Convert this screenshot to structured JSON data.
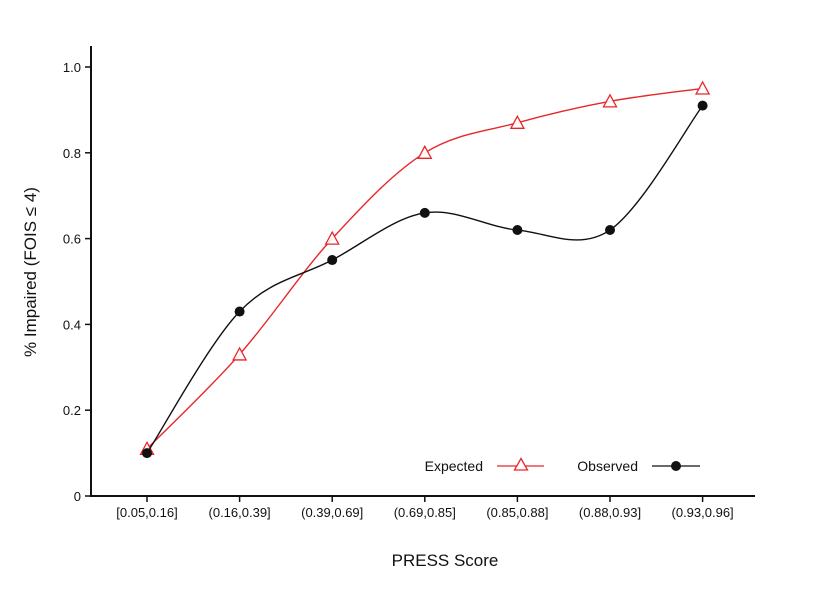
{
  "chart_data": {
    "type": "line",
    "title": "",
    "xlabel": "PRESS Score",
    "ylabel": "% Impaired (FOIS ≤ 4)",
    "ylim": [
      0,
      1.0
    ],
    "yticks": [
      "0",
      "0.2",
      "0.4",
      "0.6",
      "0.8",
      "1.0"
    ],
    "ytick_values": [
      0,
      0.2,
      0.4,
      0.6,
      0.8,
      1.0
    ],
    "categories": [
      "[0.05,0.16]",
      "(0.16,0.39]",
      "(0.39,0.69]",
      "(0.69,0.85]",
      "(0.85,0.88]",
      "(0.88,0.93]",
      "(0.93,0.96]"
    ],
    "series": [
      {
        "name": "Expected",
        "color": "#e8262a",
        "marker": "open-triangle",
        "values": [
          0.11,
          0.33,
          0.6,
          0.8,
          0.87,
          0.92,
          0.95
        ]
      },
      {
        "name": "Observed",
        "color": "#111111",
        "marker": "filled-circle",
        "values": [
          0.1,
          0.43,
          0.55,
          0.66,
          0.62,
          0.62,
          0.91
        ]
      }
    ],
    "grid": false,
    "legend_position": "bottom-right"
  }
}
